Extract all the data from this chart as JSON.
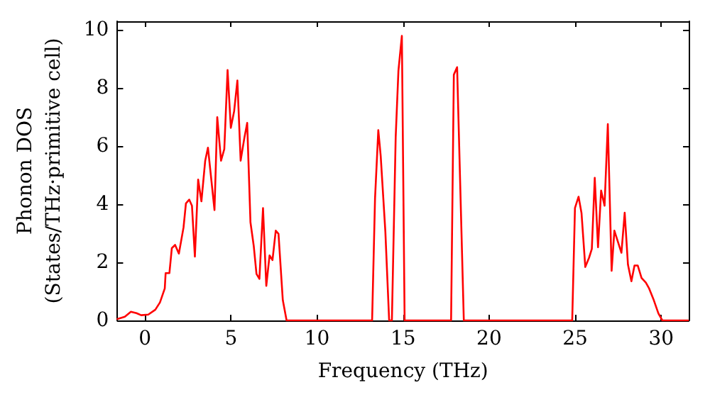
{
  "chart_data": {
    "type": "line",
    "xlabel": "Frequency (THz)",
    "ylabel": "Phonon DOS\n(States/THz·primitive cell)",
    "x": [
      -1.6,
      -1.17,
      -0.82,
      -0.49,
      -0.22,
      0.19,
      0.6,
      0.87,
      1.15,
      1.2,
      1.42,
      1.56,
      1.75,
      1.97,
      2.24,
      2.38,
      2.57,
      2.73,
      2.9,
      3.09,
      3.28,
      3.5,
      3.66,
      4.04,
      4.2,
      4.42,
      4.61,
      4.8,
      4.99,
      5.18,
      5.37,
      5.56,
      5.78,
      5.94,
      6.13,
      6.32,
      6.48,
      6.65,
      6.86,
      7.05,
      7.24,
      7.41,
      7.6,
      7.76,
      8.01,
      8.23,
      13.2,
      13.37,
      13.56,
      13.7,
      13.97,
      14.19,
      14.35,
      14.57,
      14.73,
      14.93,
      15.09,
      17.79,
      17.95,
      18.14,
      18.53,
      24.83,
      24.99,
      25.2,
      25.37,
      25.59,
      25.81,
      25.97,
      26.14,
      26.33,
      26.51,
      26.71,
      26.9,
      27.12,
      27.28,
      27.5,
      27.69,
      27.88,
      28.07,
      28.27,
      28.45,
      28.64,
      28.86,
      29.11,
      29.3,
      29.57,
      29.84,
      30.07,
      31.56
    ],
    "series": [
      {
        "color": "#ff0000",
        "values": [
          0.05,
          0.13,
          0.3,
          0.25,
          0.18,
          0.2,
          0.37,
          0.62,
          1.1,
          1.63,
          1.63,
          2.49,
          2.6,
          2.3,
          3.2,
          4.03,
          4.16,
          3.95,
          2.2,
          4.85,
          4.1,
          5.5,
          5.95,
          3.8,
          7.0,
          5.5,
          5.9,
          8.62,
          6.63,
          7.2,
          8.26,
          5.5,
          6.3,
          6.8,
          3.38,
          2.57,
          1.6,
          1.43,
          3.87,
          1.19,
          2.24,
          2.08,
          3.09,
          2.98,
          0.7,
          0,
          0,
          4.2,
          6.55,
          5.66,
          3.06,
          0,
          0,
          6.3,
          8.6,
          9.8,
          0,
          0,
          8.46,
          8.72,
          0,
          0,
          3.87,
          4.26,
          3.7,
          1.84,
          2.16,
          2.46,
          4.91,
          2.52,
          4.47,
          3.95,
          6.76,
          1.71,
          3.09,
          2.68,
          2.33,
          3.71,
          1.92,
          1.35,
          1.89,
          1.89,
          1.46,
          1.3,
          1.1,
          0.7,
          0.24,
          0,
          0
        ]
      }
    ],
    "xlim": [
      -1.6,
      31.6
    ],
    "ylim": [
      0,
      10.3
    ],
    "xticks": [
      0,
      5,
      10,
      15,
      20,
      25,
      30
    ],
    "yticks": [
      0,
      2,
      4,
      6,
      8,
      10
    ],
    "grid": false,
    "marker": "none",
    "line_style": "solid"
  }
}
